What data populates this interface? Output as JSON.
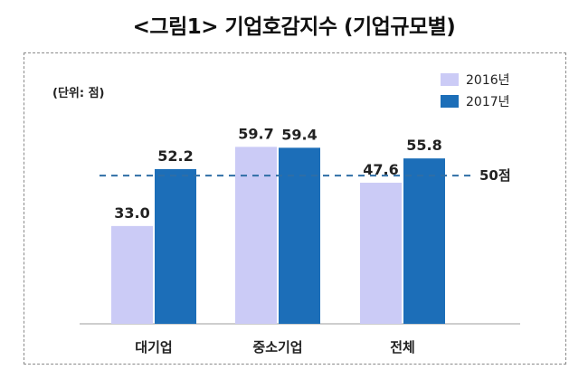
{
  "title": "<그림1> 기업호감지수 (기업규모별)",
  "unit_label": "(단위: 점)",
  "colors": {
    "2016": "#cbcbf6",
    "2017": "#1c6eb8",
    "refline": "#2f6ea6"
  },
  "chart_data": {
    "type": "bar",
    "categories": [
      "대기업",
      "중소기업",
      "전체"
    ],
    "series": [
      {
        "name": "2016년",
        "values": [
          33.0,
          59.7,
          47.6
        ],
        "labels": [
          "33.0",
          "59.7",
          "47.6"
        ]
      },
      {
        "name": "2017년",
        "values": [
          52.2,
          59.4,
          55.8
        ],
        "labels": [
          "52.2",
          "59.4",
          "55.8"
        ]
      }
    ],
    "reference_line": {
      "value": 50,
      "label": "50점"
    },
    "ylim": [
      0,
      65
    ],
    "legend_position": "top-right",
    "grid": false
  }
}
